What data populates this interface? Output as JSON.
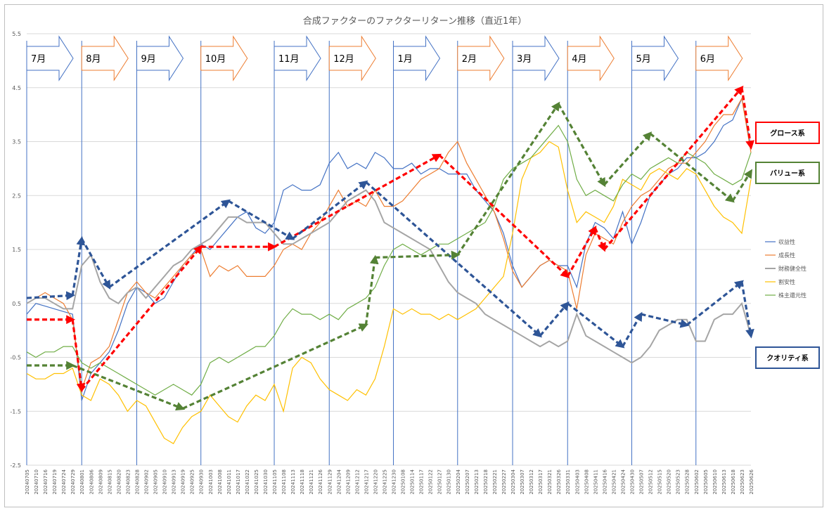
{
  "chart_data": {
    "type": "line",
    "title": "合成ファクターのファクターリターン推移（直近1年）",
    "ylim": [
      -2.5,
      5.5
    ],
    "y_ticks": [
      "5.5",
      "4.5",
      "3.5",
      "2.5",
      "1.5",
      "0.5",
      "-0.5",
      "-1.5",
      "-2.5"
    ],
    "y_tick_values": [
      5.5,
      4.5,
      3.5,
      2.5,
      1.5,
      0.5,
      -0.5,
      -1.5,
      -2.5
    ],
    "x_tick_labels": [
      "20240705",
      "20240710",
      "20240716",
      "20240719",
      "20240724",
      "20240729",
      "20240801",
      "20240806",
      "20240809",
      "20240815",
      "20240820",
      "20240823",
      "20240828",
      "20240902",
      "20240905",
      "20240910",
      "20240913",
      "20240919",
      "20240925",
      "20240930",
      "20241003",
      "20241008",
      "20241011",
      "20241017",
      "20241022",
      "20241025",
      "20241030",
      "20241105",
      "20241108",
      "20241113",
      "20241118",
      "20241121",
      "20241126",
      "20241129",
      "20241204",
      "20241209",
      "20241212",
      "20241217",
      "20241220",
      "20241225",
      "20241230",
      "20250108",
      "20250114",
      "20250117",
      "20250122",
      "20250127",
      "20250130",
      "20250204",
      "20250207",
      "20250213",
      "20250218",
      "20250221",
      "20250227",
      "20250304",
      "20250307",
      "20250312",
      "20250317",
      "20250321",
      "20250326",
      "20250331",
      "20250403",
      "20250408",
      "20250411",
      "20250416",
      "20250421",
      "20250424",
      "20250430",
      "20250507",
      "20250512",
      "20250515",
      "20250520",
      "20250523",
      "20250528",
      "20250602",
      "20250605",
      "20250610",
      "20250613",
      "20250618",
      "20250623",
      "20250626"
    ],
    "months": [
      "7月",
      "8月",
      "9月",
      "10月",
      "11月",
      "12月",
      "1月",
      "2月",
      "3月",
      "4月",
      "5月",
      "6月"
    ],
    "month_start_index": [
      0,
      6,
      12,
      19,
      27,
      33,
      40,
      47,
      53,
      59,
      66,
      73
    ],
    "series": [
      {
        "name": "収益性",
        "color": "#4472c4",
        "values": [
          0.3,
          0.5,
          0.45,
          0.4,
          0.35,
          0.3,
          -1.3,
          -0.8,
          -0.6,
          -0.4,
          0.0,
          0.5,
          0.8,
          0.7,
          0.5,
          0.6,
          0.9,
          1.2,
          1.4,
          1.6,
          1.5,
          1.7,
          1.9,
          2.1,
          2.2,
          1.9,
          1.8,
          2.0,
          2.6,
          2.7,
          2.6,
          2.6,
          2.7,
          3.1,
          3.3,
          3.0,
          3.1,
          3.0,
          3.3,
          3.2,
          3.0,
          3.0,
          3.1,
          2.9,
          3.0,
          3.0,
          2.9,
          2.9,
          2.9,
          2.6,
          2.4,
          2.2,
          1.8,
          1.2,
          0.8,
          1.0,
          1.2,
          1.3,
          1.2,
          1.2,
          0.8,
          1.6,
          2.0,
          1.9,
          1.7,
          2.2,
          1.6,
          2.0,
          2.5,
          2.7,
          2.9,
          3.0,
          3.2,
          3.2,
          3.3,
          3.5,
          3.8,
          3.9,
          4.3,
          3.4
        ]
      },
      {
        "name": "成長性",
        "color": "#ed7d31",
        "values": [
          0.5,
          0.6,
          0.7,
          0.6,
          0.5,
          0.2,
          -1.1,
          -0.6,
          -0.5,
          -0.3,
          0.2,
          0.7,
          0.9,
          0.7,
          0.6,
          0.8,
          1.0,
          1.2,
          1.4,
          1.5,
          1.0,
          1.2,
          1.1,
          1.2,
          1.0,
          1.0,
          1.0,
          1.2,
          1.5,
          1.6,
          1.5,
          1.8,
          2.0,
          2.3,
          2.6,
          2.3,
          2.4,
          2.3,
          2.6,
          2.3,
          2.3,
          2.4,
          2.6,
          2.8,
          2.9,
          3.0,
          3.3,
          3.5,
          3.1,
          2.8,
          2.5,
          2.2,
          1.7,
          1.1,
          0.8,
          1.0,
          1.2,
          1.3,
          1.2,
          1.1,
          0.4,
          1.4,
          1.8,
          1.7,
          1.6,
          2.0,
          2.3,
          2.5,
          2.6,
          2.8,
          3.0,
          3.1,
          3.1,
          3.3,
          3.5,
          3.8,
          4.0,
          4.0,
          4.3,
          3.3
        ]
      },
      {
        "name": "財務健全性",
        "color": "#a5a5a5",
        "values": [
          0.5,
          0.6,
          0.6,
          0.5,
          0.4,
          0.4,
          1.2,
          1.4,
          0.9,
          0.6,
          0.5,
          0.7,
          0.8,
          0.6,
          0.8,
          1.0,
          1.2,
          1.3,
          1.5,
          1.6,
          1.7,
          1.9,
          2.1,
          2.1,
          2.0,
          2.0,
          2.0,
          1.8,
          1.6,
          1.6,
          1.7,
          1.8,
          1.9,
          2.0,
          2.2,
          2.4,
          2.5,
          2.6,
          2.4,
          2.0,
          1.9,
          1.8,
          1.7,
          1.6,
          1.5,
          1.2,
          0.9,
          0.7,
          0.6,
          0.5,
          0.3,
          0.2,
          0.1,
          0.0,
          -0.1,
          -0.2,
          -0.3,
          -0.2,
          -0.3,
          -0.2,
          0.3,
          -0.1,
          -0.2,
          -0.3,
          -0.4,
          -0.5,
          -0.6,
          -0.5,
          -0.3,
          0.0,
          0.1,
          0.2,
          0.2,
          -0.2,
          -0.2,
          0.2,
          0.3,
          0.3,
          0.5,
          -0.1
        ]
      },
      {
        "name": "割安性",
        "color": "#ffc000",
        "values": [
          -0.8,
          -0.9,
          -0.9,
          -0.8,
          -0.8,
          -0.7,
          -1.2,
          -1.3,
          -0.9,
          -1.0,
          -1.2,
          -1.5,
          -1.3,
          -1.4,
          -1.7,
          -2.0,
          -2.1,
          -1.8,
          -1.6,
          -1.5,
          -1.2,
          -1.4,
          -1.6,
          -1.7,
          -1.4,
          -1.2,
          -1.3,
          -1.0,
          -1.5,
          -0.7,
          -0.5,
          -0.6,
          -0.9,
          -1.1,
          -1.2,
          -1.3,
          -1.1,
          -1.2,
          -0.9,
          -0.3,
          0.4,
          0.3,
          0.4,
          0.3,
          0.3,
          0.2,
          0.3,
          0.2,
          0.3,
          0.4,
          0.6,
          0.8,
          1.0,
          1.8,
          2.8,
          3.2,
          3.3,
          3.5,
          3.4,
          2.6,
          2.0,
          2.2,
          2.1,
          2.0,
          2.3,
          2.8,
          2.7,
          2.6,
          2.9,
          3.0,
          2.9,
          2.8,
          3.0,
          2.9,
          2.6,
          2.3,
          2.1,
          2.0,
          1.8,
          2.8
        ]
      },
      {
        "name": "株主還元性",
        "color": "#70ad47",
        "values": [
          -0.4,
          -0.5,
          -0.4,
          -0.4,
          -0.3,
          -0.3,
          -0.6,
          -0.7,
          -0.6,
          -0.7,
          -0.8,
          -0.9,
          -1.0,
          -1.1,
          -1.2,
          -1.1,
          -1.0,
          -1.1,
          -1.2,
          -1.0,
          -0.6,
          -0.5,
          -0.6,
          -0.5,
          -0.4,
          -0.3,
          -0.3,
          -0.1,
          0.2,
          0.4,
          0.3,
          0.3,
          0.2,
          0.3,
          0.2,
          0.4,
          0.5,
          0.6,
          0.8,
          1.2,
          1.5,
          1.6,
          1.5,
          1.4,
          1.5,
          1.6,
          1.6,
          1.7,
          1.8,
          1.9,
          2.0,
          2.3,
          2.8,
          3.0,
          3.1,
          3.2,
          3.4,
          3.6,
          3.8,
          3.5,
          2.8,
          2.5,
          2.6,
          2.5,
          2.4,
          2.7,
          2.9,
          2.8,
          3.0,
          3.1,
          3.2,
          3.1,
          3.3,
          3.2,
          3.1,
          2.9,
          2.8,
          2.7,
          2.8,
          3.3
        ]
      }
    ],
    "trend_arrows": [
      {
        "group": "グロース系",
        "color": "#ff0000",
        "points": [
          [
            0,
            0.2
          ],
          [
            5,
            0.2
          ],
          [
            6,
            -1.1
          ],
          [
            19,
            1.55
          ],
          [
            27,
            1.55
          ],
          [
            45,
            3.25
          ],
          [
            59,
            1.0
          ],
          [
            62,
            1.9
          ],
          [
            63,
            1.5
          ],
          [
            78,
            4.5
          ],
          [
            79,
            3.4
          ]
        ]
      },
      {
        "group": "クオリティ系",
        "color": "#2e5597",
        "points": [
          [
            0,
            0.6
          ],
          [
            5,
            0.65
          ],
          [
            6,
            1.7
          ],
          [
            9,
            0.8
          ],
          [
            22,
            2.4
          ],
          [
            29,
            1.7
          ],
          [
            37,
            2.75
          ],
          [
            56,
            -0.1
          ],
          [
            59,
            0.5
          ],
          [
            65,
            -0.3
          ],
          [
            67,
            0.3
          ],
          [
            72,
            0.1
          ],
          [
            78,
            0.9
          ],
          [
            79,
            -0.1
          ]
        ]
      },
      {
        "group": "バリュー系",
        "color": "#548235",
        "points": [
          [
            0,
            -0.65
          ],
          [
            5,
            -0.65
          ],
          [
            17,
            -1.45
          ],
          [
            37,
            0.1
          ],
          [
            38,
            1.35
          ],
          [
            47,
            1.4
          ],
          [
            58,
            4.2
          ],
          [
            63,
            2.7
          ],
          [
            68,
            3.65
          ],
          [
            77,
            2.4
          ],
          [
            79,
            2.95
          ]
        ]
      }
    ],
    "group_labels": [
      {
        "text": "グロース系",
        "color": "#ff0000"
      },
      {
        "text": "バリュー系",
        "color": "#548235"
      },
      {
        "text": "クオリティ系",
        "color": "#2e5597"
      }
    ]
  }
}
